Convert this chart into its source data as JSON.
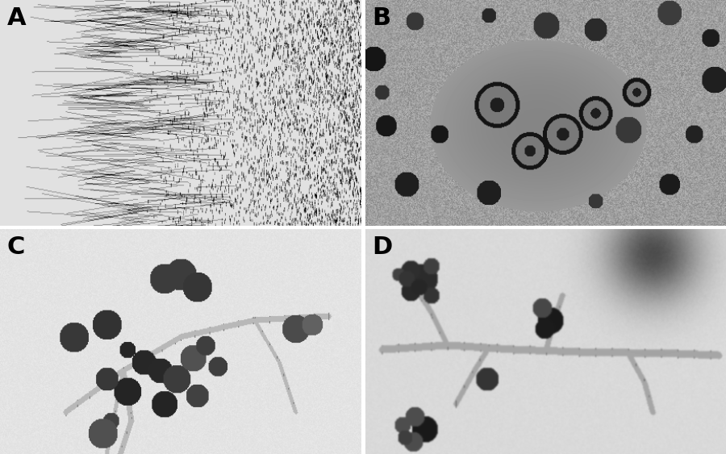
{
  "figure_width": 9.0,
  "figure_height": 5.63,
  "dpi": 100,
  "labels": [
    "A",
    "B",
    "C",
    "D"
  ],
  "label_fontsize": 22,
  "label_color": "#000000",
  "label_fontweight": "bold",
  "background_color": "#ffffff",
  "divider_color": "#ffffff",
  "divider_linewidth": 3
}
